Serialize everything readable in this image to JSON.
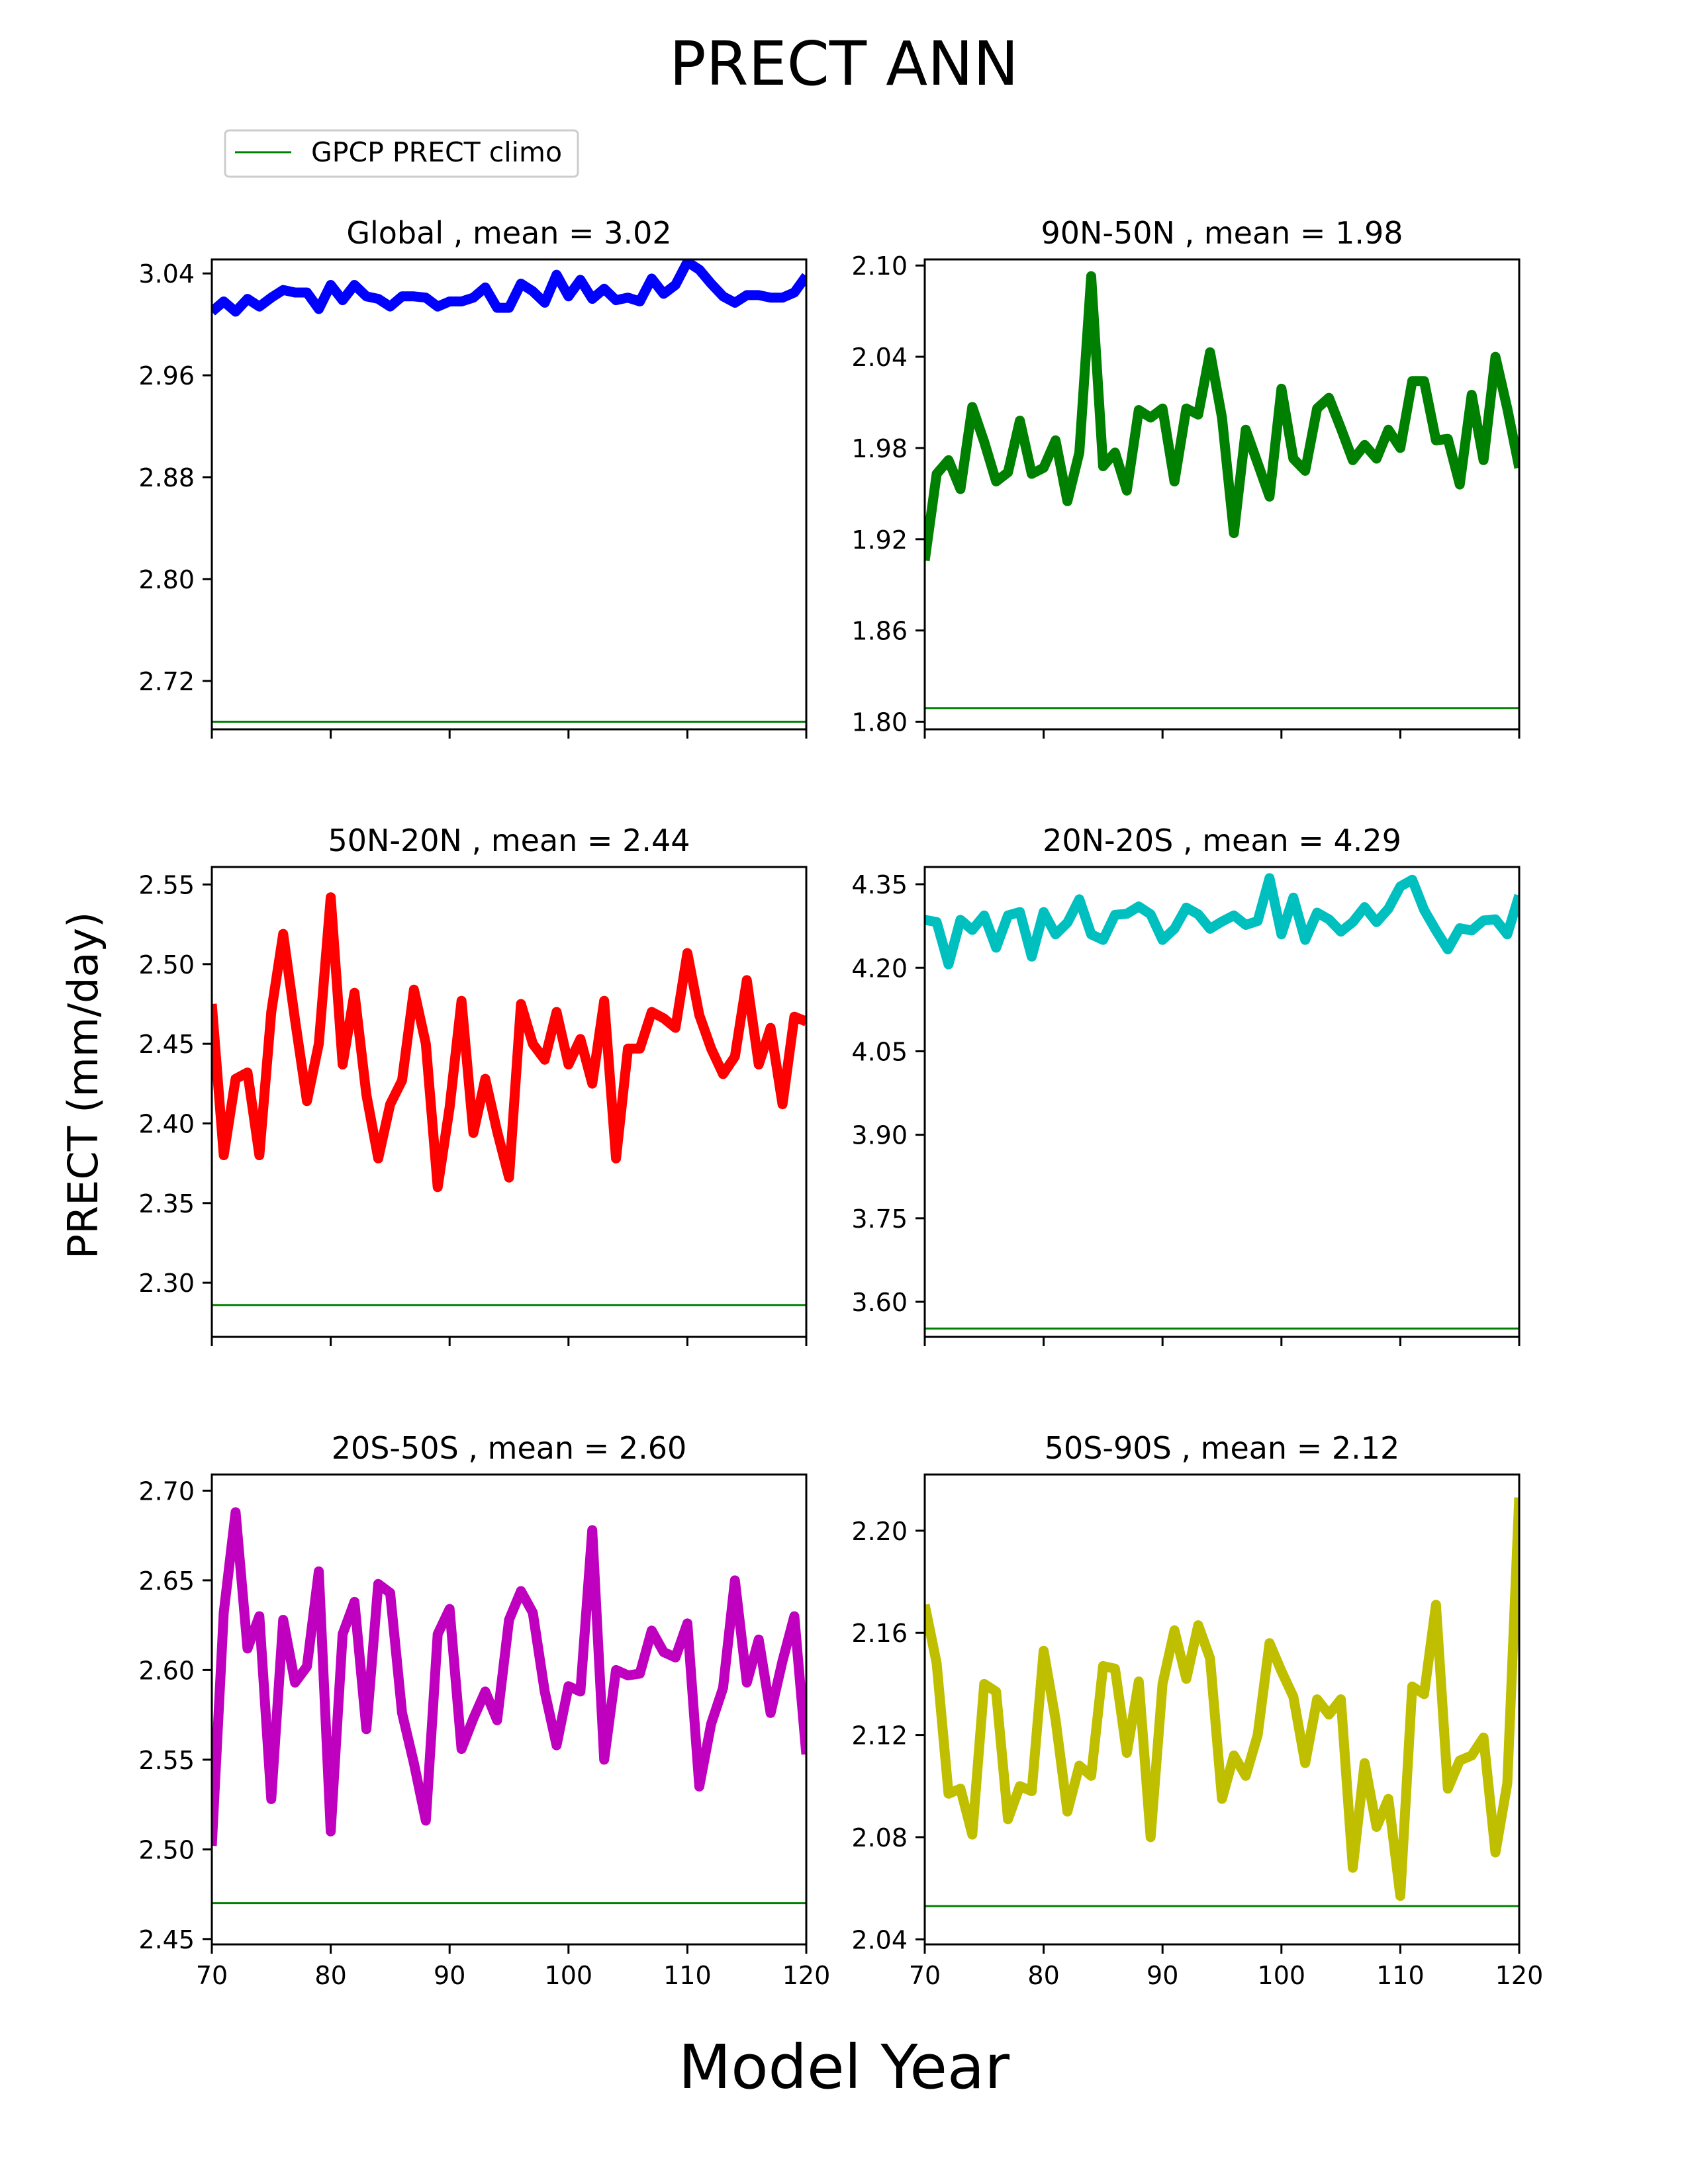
{
  "figure": {
    "title": "PRECT ANN",
    "xlabel": "Model Year",
    "ylabel": "PRECT (mm/day)",
    "legend": {
      "label": "GPCP PRECT climo",
      "color": "#008000",
      "placement": "top-left"
    }
  },
  "chart_data": [
    {
      "type": "line",
      "title": "Global , mean = 3.02",
      "color": "#0000ff",
      "climo": 2.688,
      "xlim": [
        70,
        120
      ],
      "ylim": [
        2.682,
        3.051
      ],
      "yticks": [
        2.72,
        2.8,
        2.88,
        2.96,
        3.04
      ],
      "ytick_labels": [
        "2.72",
        "2.80",
        "2.88",
        "2.96",
        "3.04"
      ],
      "xticks": [
        70,
        80,
        90,
        100,
        110,
        120
      ],
      "xtick_labels": [],
      "x": [
        70,
        71,
        72,
        73,
        74,
        75,
        76,
        77,
        78,
        79,
        80,
        81,
        82,
        83,
        84,
        85,
        86,
        87,
        88,
        89,
        90,
        91,
        92,
        93,
        94,
        95,
        96,
        97,
        98,
        99,
        100,
        101,
        102,
        103,
        104,
        105,
        106,
        107,
        108,
        109,
        110,
        111,
        112,
        113,
        114,
        115,
        116,
        117,
        118,
        119,
        120
      ],
      "values": [
        3.01,
        3.018,
        3.01,
        3.02,
        3.014,
        3.021,
        3.027,
        3.025,
        3.025,
        3.012,
        3.031,
        3.019,
        3.031,
        3.022,
        3.02,
        3.014,
        3.022,
        3.022,
        3.021,
        3.014,
        3.018,
        3.018,
        3.021,
        3.029,
        3.013,
        3.013,
        3.032,
        3.026,
        3.017,
        3.039,
        3.022,
        3.035,
        3.02,
        3.028,
        3.019,
        3.021,
        3.018,
        3.036,
        3.024,
        3.031,
        3.049,
        3.043,
        3.032,
        3.022,
        3.017,
        3.023,
        3.023,
        3.021,
        3.021,
        3.025,
        3.038
      ]
    },
    {
      "type": "line",
      "title": "90N-50N , mean = 1.98",
      "color": "#008000",
      "climo": 1.809,
      "xlim": [
        70,
        120
      ],
      "ylim": [
        1.795,
        2.104
      ],
      "yticks": [
        1.8,
        1.86,
        1.92,
        1.98,
        2.04,
        2.1
      ],
      "ytick_labels": [
        "1.80",
        "1.86",
        "1.92",
        "1.98",
        "2.04",
        "2.10"
      ],
      "xticks": [
        70,
        80,
        90,
        100,
        110,
        120
      ],
      "xtick_labels": [],
      "x": [
        70,
        71,
        72,
        73,
        74,
        75,
        76,
        77,
        78,
        79,
        80,
        81,
        82,
        83,
        84,
        85,
        86,
        87,
        88,
        89,
        90,
        91,
        92,
        93,
        94,
        95,
        96,
        97,
        98,
        99,
        100,
        101,
        102,
        103,
        104,
        105,
        106,
        107,
        108,
        109,
        110,
        111,
        112,
        113,
        114,
        115,
        116,
        117,
        118,
        119,
        120
      ],
      "values": [
        1.906,
        1.963,
        1.972,
        1.953,
        2.007,
        1.984,
        1.958,
        1.964,
        1.998,
        1.963,
        1.967,
        1.985,
        1.945,
        1.977,
        2.093,
        1.968,
        1.977,
        1.952,
        2.005,
        2.0,
        2.006,
        1.958,
        2.006,
        2.002,
        2.043,
        2.0,
        1.924,
        1.992,
        1.97,
        1.948,
        2.019,
        1.973,
        1.965,
        2.006,
        2.013,
        1.993,
        1.972,
        1.982,
        1.973,
        1.992,
        1.98,
        2.024,
        2.024,
        1.985,
        1.986,
        1.956,
        2.015,
        1.972,
        2.04,
        2.006,
        1.967
      ]
    },
    {
      "type": "line",
      "title": "50N-20N , mean = 2.44",
      "color": "#ff0000",
      "climo": 2.286,
      "xlim": [
        70,
        120
      ],
      "ylim": [
        2.266,
        2.561
      ],
      "yticks": [
        2.3,
        2.35,
        2.4,
        2.45,
        2.5,
        2.55
      ],
      "ytick_labels": [
        "2.30",
        "2.35",
        "2.40",
        "2.45",
        "2.50",
        "2.55"
      ],
      "xticks": [
        70,
        80,
        90,
        100,
        110,
        120
      ],
      "xtick_labels": [],
      "x": [
        70,
        71,
        72,
        73,
        74,
        75,
        76,
        77,
        78,
        79,
        80,
        81,
        82,
        83,
        84,
        85,
        86,
        87,
        88,
        89,
        90,
        91,
        92,
        93,
        94,
        95,
        96,
        97,
        98,
        99,
        100,
        101,
        102,
        103,
        104,
        105,
        106,
        107,
        108,
        109,
        110,
        111,
        112,
        113,
        114,
        115,
        116,
        117,
        118,
        119,
        120
      ],
      "values": [
        2.475,
        2.38,
        2.428,
        2.432,
        2.38,
        2.47,
        2.519,
        2.465,
        2.414,
        2.45,
        2.542,
        2.437,
        2.482,
        2.418,
        2.378,
        2.412,
        2.427,
        2.484,
        2.45,
        2.36,
        2.41,
        2.477,
        2.394,
        2.428,
        2.395,
        2.366,
        2.475,
        2.45,
        2.44,
        2.47,
        2.437,
        2.453,
        2.425,
        2.477,
        2.378,
        2.447,
        2.447,
        2.47,
        2.466,
        2.46,
        2.507,
        2.468,
        2.447,
        2.431,
        2.442,
        2.49,
        2.437,
        2.46,
        2.412,
        2.467,
        2.464
      ]
    },
    {
      "type": "line",
      "title": "20N-20S , mean = 4.29",
      "color": "#00bfbf",
      "climo": 3.552,
      "xlim": [
        70,
        120
      ],
      "ylim": [
        3.537,
        4.381
      ],
      "yticks": [
        3.6,
        3.75,
        3.9,
        4.05,
        4.2,
        4.35
      ],
      "ytick_labels": [
        "3.60",
        "3.75",
        "3.90",
        "4.05",
        "4.20",
        "4.35"
      ],
      "xticks": [
        70,
        80,
        90,
        100,
        110,
        120
      ],
      "xtick_labels": [],
      "x": [
        70,
        71,
        72,
        73,
        74,
        75,
        76,
        77,
        78,
        79,
        80,
        81,
        82,
        83,
        84,
        85,
        86,
        87,
        88,
        89,
        90,
        91,
        92,
        93,
        94,
        95,
        96,
        97,
        98,
        99,
        100,
        101,
        102,
        103,
        104,
        105,
        106,
        107,
        108,
        109,
        110,
        111,
        112,
        113,
        114,
        115,
        116,
        117,
        118,
        119,
        120
      ],
      "values": [
        4.286,
        4.282,
        4.206,
        4.286,
        4.268,
        4.294,
        4.236,
        4.294,
        4.3,
        4.22,
        4.3,
        4.26,
        4.281,
        4.323,
        4.26,
        4.25,
        4.295,
        4.297,
        4.31,
        4.296,
        4.25,
        4.27,
        4.308,
        4.296,
        4.27,
        4.283,
        4.294,
        4.277,
        4.284,
        4.361,
        4.26,
        4.326,
        4.25,
        4.299,
        4.287,
        4.265,
        4.282,
        4.309,
        4.282,
        4.306,
        4.346,
        4.358,
        4.304,
        4.267,
        4.233,
        4.271,
        4.267,
        4.285,
        4.287,
        4.26,
        4.33
      ]
    },
    {
      "type": "line",
      "title": "20S-50S , mean = 2.60",
      "color": "#bf00bf",
      "climo": 2.47,
      "xlim": [
        70,
        120
      ],
      "ylim": [
        2.447,
        2.709
      ],
      "yticks": [
        2.45,
        2.5,
        2.55,
        2.6,
        2.65,
        2.7
      ],
      "ytick_labels": [
        "2.45",
        "2.50",
        "2.55",
        "2.60",
        "2.65",
        "2.70"
      ],
      "xticks": [
        70,
        80,
        90,
        100,
        110,
        120
      ],
      "xtick_labels": [
        "70",
        "80",
        "90",
        "100",
        "110",
        "120"
      ],
      "x": [
        70,
        71,
        72,
        73,
        74,
        75,
        76,
        77,
        78,
        79,
        80,
        81,
        82,
        83,
        84,
        85,
        86,
        87,
        88,
        89,
        90,
        91,
        92,
        93,
        94,
        95,
        96,
        97,
        98,
        99,
        100,
        101,
        102,
        103,
        104,
        105,
        106,
        107,
        108,
        109,
        110,
        111,
        112,
        113,
        114,
        115,
        116,
        117,
        118,
        119,
        120
      ],
      "values": [
        2.502,
        2.632,
        2.688,
        2.612,
        2.63,
        2.528,
        2.628,
        2.593,
        2.602,
        2.655,
        2.51,
        2.62,
        2.638,
        2.567,
        2.648,
        2.643,
        2.576,
        2.548,
        2.516,
        2.62,
        2.634,
        2.556,
        2.573,
        2.588,
        2.572,
        2.628,
        2.644,
        2.632,
        2.588,
        2.558,
        2.591,
        2.588,
        2.678,
        2.55,
        2.6,
        2.597,
        2.598,
        2.622,
        2.61,
        2.607,
        2.626,
        2.535,
        2.57,
        2.59,
        2.65,
        2.593,
        2.617,
        2.576,
        2.605,
        2.63,
        2.553
      ]
    },
    {
      "type": "line",
      "title": "50S-90S , mean = 2.12",
      "color": "#bfbf00",
      "climo": 2.053,
      "xlim": [
        70,
        120
      ],
      "ylim": [
        2.038,
        2.222
      ],
      "yticks": [
        2.04,
        2.08,
        2.12,
        2.16,
        2.2
      ],
      "ytick_labels": [
        "2.04",
        "2.08",
        "2.12",
        "2.16",
        "2.20"
      ],
      "xticks": [
        70,
        80,
        90,
        100,
        110,
        120
      ],
      "xtick_labels": [
        "70",
        "80",
        "90",
        "100",
        "110",
        "120"
      ],
      "x": [
        70,
        71,
        72,
        73,
        74,
        75,
        76,
        77,
        78,
        79,
        80,
        81,
        82,
        83,
        84,
        85,
        86,
        87,
        88,
        89,
        90,
        91,
        92,
        93,
        94,
        95,
        96,
        97,
        98,
        99,
        100,
        101,
        102,
        103,
        104,
        105,
        106,
        107,
        108,
        109,
        110,
        111,
        112,
        113,
        114,
        115,
        116,
        117,
        118,
        119,
        120
      ],
      "values": [
        2.171,
        2.148,
        2.097,
        2.099,
        2.081,
        2.14,
        2.137,
        2.087,
        2.1,
        2.098,
        2.153,
        2.126,
        2.09,
        2.108,
        2.104,
        2.147,
        2.146,
        2.113,
        2.141,
        2.08,
        2.14,
        2.161,
        2.142,
        2.163,
        2.15,
        2.095,
        2.112,
        2.104,
        2.12,
        2.156,
        2.145,
        2.135,
        2.109,
        2.134,
        2.128,
        2.134,
        2.068,
        2.109,
        2.084,
        2.095,
        2.057,
        2.139,
        2.136,
        2.171,
        2.099,
        2.11,
        2.112,
        2.119,
        2.074,
        2.101,
        2.213
      ]
    }
  ]
}
